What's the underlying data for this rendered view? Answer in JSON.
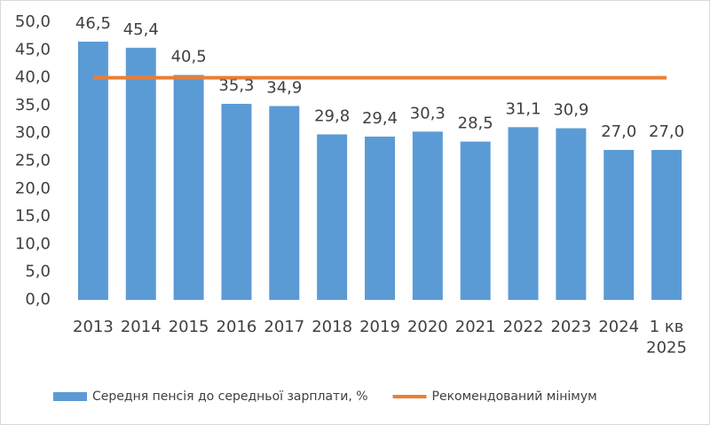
{
  "chart_data": {
    "type": "bar",
    "categories": [
      "2013",
      "2014",
      "2015",
      "2016",
      "2017",
      "2018",
      "2019",
      "2020",
      "2021",
      "2022",
      "2023",
      "2024",
      "1 кв\n2025"
    ],
    "series": [
      {
        "name": "Середня пенсія до середньої зарплати, %",
        "type": "bar",
        "color": "#5b9bd5",
        "values": [
          46.5,
          45.4,
          40.5,
          35.3,
          34.9,
          29.8,
          29.4,
          30.3,
          28.5,
          31.1,
          30.9,
          27.0,
          27.0
        ],
        "value_labels": [
          "46,5",
          "45,4",
          "40,5",
          "35,3",
          "34,9",
          "29,8",
          "29,4",
          "30,3",
          "28,5",
          "31,1",
          "30,9",
          "27,0",
          "27,0"
        ]
      },
      {
        "name": "Рекомендований мінімум",
        "type": "line",
        "color": "#ed7d31",
        "values": [
          40,
          40,
          40,
          40,
          40,
          40,
          40,
          40,
          40,
          40,
          40,
          40,
          40
        ]
      }
    ],
    "ylim": [
      0,
      50
    ],
    "yticks": [
      {
        "value": 0,
        "label": "0,0"
      },
      {
        "value": 5,
        "label": "5,0"
      },
      {
        "value": 10,
        "label": "10,0"
      },
      {
        "value": 15,
        "label": "15,0"
      },
      {
        "value": 20,
        "label": "20,0"
      },
      {
        "value": 25,
        "label": "25,0"
      },
      {
        "value": 30,
        "label": "30,0"
      },
      {
        "value": 35,
        "label": "35,0"
      },
      {
        "value": 40,
        "label": "40,0"
      },
      {
        "value": 45,
        "label": "45,0"
      },
      {
        "value": 50,
        "label": "50,0"
      }
    ],
    "legend": "bottom",
    "grid": false
  }
}
